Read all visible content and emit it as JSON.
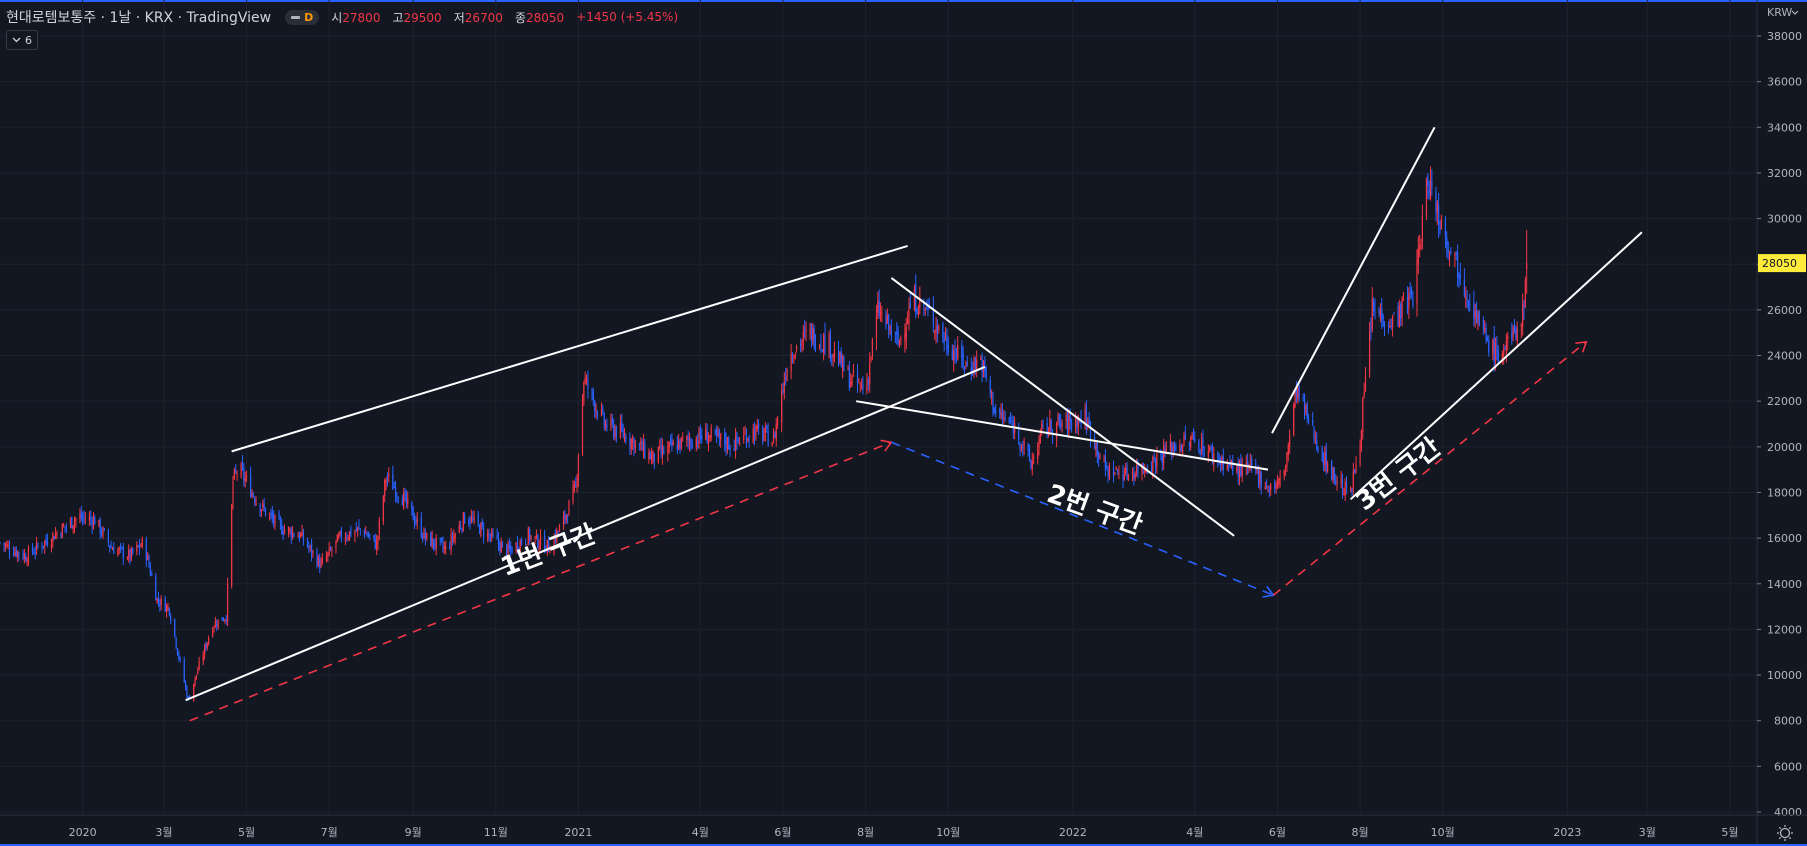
{
  "header": {
    "title": "현대로템보통주 · 1날 · KRX · TradingView",
    "interval_badge": "D",
    "ohlc": [
      {
        "key": "시",
        "value": "27800"
      },
      {
        "key": "고",
        "value": "29500"
      },
      {
        "key": "저",
        "value": "26700"
      },
      {
        "key": "종",
        "value": "28050"
      }
    ],
    "change": "+1450 (+5.45%)"
  },
  "indicators_toggle": {
    "count": "6"
  },
  "colors": {
    "background": "#131722",
    "grid": "#1e222d",
    "up": "#f23645",
    "down": "#2962ff",
    "price_badge": "#ffeb3b",
    "trend": "#ffffff",
    "accent": "#2962ff"
  },
  "chart_data": {
    "type": "candlestick",
    "currency": "KRW",
    "last_price": 28050,
    "ylim": [
      4000,
      38000
    ],
    "y_ticks": [
      "4000",
      "6000",
      "8000",
      "10000",
      "12000",
      "14000",
      "16000",
      "18000",
      "20000",
      "22000",
      "24000",
      "26000",
      "28000",
      "30000",
      "32000",
      "34000",
      "36000",
      "38000"
    ],
    "x_range": [
      "2019-11-01",
      "2023-05-21"
    ],
    "x_ticks": [
      {
        "date": "2020-01-01",
        "label": "2020"
      },
      {
        "date": "2020-03-01",
        "label": "3월"
      },
      {
        "date": "2020-05-01",
        "label": "5월"
      },
      {
        "date": "2020-07-01",
        "label": "7월"
      },
      {
        "date": "2020-09-01",
        "label": "9월"
      },
      {
        "date": "2020-11-01",
        "label": "11월"
      },
      {
        "date": "2021-01-01",
        "label": "2021"
      },
      {
        "date": "2021-04-01",
        "label": "4월"
      },
      {
        "date": "2021-06-01",
        "label": "6월"
      },
      {
        "date": "2021-08-01",
        "label": "8월"
      },
      {
        "date": "2021-10-01",
        "label": "10월"
      },
      {
        "date": "2022-01-01",
        "label": "2022"
      },
      {
        "date": "2022-04-01",
        "label": "4월"
      },
      {
        "date": "2022-06-01",
        "label": "6월"
      },
      {
        "date": "2022-08-01",
        "label": "8월"
      },
      {
        "date": "2022-10-01",
        "label": "10월"
      },
      {
        "date": "2023-01-01",
        "label": "2023"
      },
      {
        "date": "2023-03-01",
        "label": "3월"
      },
      {
        "date": "2023-05-01",
        "label": "5월"
      }
    ],
    "price_path": [
      [
        "2019-11-01",
        15800
      ],
      [
        "2019-11-20",
        15200
      ],
      [
        "2019-12-10",
        16100
      ],
      [
        "2019-12-28",
        16900
      ],
      [
        "2020-01-10",
        16800
      ],
      [
        "2020-01-22",
        15600
      ],
      [
        "2020-02-05",
        15200
      ],
      [
        "2020-02-15",
        15800
      ],
      [
        "2020-02-25",
        13300
      ],
      [
        "2020-03-05",
        12900
      ],
      [
        "2020-03-12",
        10800
      ],
      [
        "2020-03-19",
        8900
      ],
      [
        "2020-03-28",
        10600
      ],
      [
        "2020-04-06",
        12200
      ],
      [
        "2020-04-16",
        12600
      ],
      [
        "2020-04-21",
        18500
      ],
      [
        "2020-04-25",
        19100
      ],
      [
        "2020-05-10",
        17500
      ],
      [
        "2020-05-25",
        16500
      ],
      [
        "2020-06-10",
        16100
      ],
      [
        "2020-06-25",
        14800
      ],
      [
        "2020-07-10",
        16100
      ],
      [
        "2020-07-25",
        16400
      ],
      [
        "2020-08-05",
        15700
      ],
      [
        "2020-08-12",
        18700
      ],
      [
        "2020-08-25",
        17700
      ],
      [
        "2020-09-10",
        16000
      ],
      [
        "2020-09-25",
        15500
      ],
      [
        "2020-10-10",
        17000
      ],
      [
        "2020-10-25",
        16200
      ],
      [
        "2020-11-10",
        15400
      ],
      [
        "2020-11-25",
        16100
      ],
      [
        "2020-12-10",
        15600
      ],
      [
        "2020-12-20",
        16600
      ],
      [
        "2020-12-30",
        18200
      ],
      [
        "2021-01-05",
        23000
      ],
      [
        "2021-01-20",
        21000
      ],
      [
        "2021-02-05",
        20500
      ],
      [
        "2021-02-25",
        19500
      ],
      [
        "2021-03-15",
        20100
      ],
      [
        "2021-04-05",
        20500
      ],
      [
        "2021-04-25",
        20100
      ],
      [
        "2021-05-10",
        20700
      ],
      [
        "2021-05-25",
        20300
      ],
      [
        "2021-06-05",
        24000
      ],
      [
        "2021-06-20",
        25000
      ],
      [
        "2021-07-05",
        24500
      ],
      [
        "2021-07-20",
        23000
      ],
      [
        "2021-08-01",
        22500
      ],
      [
        "2021-08-10",
        26000
      ],
      [
        "2021-08-25",
        24500
      ],
      [
        "2021-09-05",
        26500
      ],
      [
        "2021-09-15",
        26000
      ],
      [
        "2021-10-01",
        24500
      ],
      [
        "2021-10-15",
        23500
      ],
      [
        "2021-10-25",
        23800
      ],
      [
        "2021-11-05",
        21500
      ],
      [
        "2021-11-20",
        20800
      ],
      [
        "2021-12-01",
        19200
      ],
      [
        "2021-12-10",
        20800
      ],
      [
        "2021-12-25",
        21000
      ],
      [
        "2022-01-10",
        21300
      ],
      [
        "2022-01-25",
        19000
      ],
      [
        "2022-02-10",
        18800
      ],
      [
        "2022-02-28",
        19300
      ],
      [
        "2022-03-15",
        20000
      ],
      [
        "2022-04-01",
        20300
      ],
      [
        "2022-04-15",
        19600
      ],
      [
        "2022-05-01",
        19000
      ],
      [
        "2022-05-15",
        19000
      ],
      [
        "2022-05-25",
        18200
      ],
      [
        "2022-06-05",
        18500
      ],
      [
        "2022-06-15",
        22500
      ],
      [
        "2022-06-25",
        21000
      ],
      [
        "2022-07-05",
        19500
      ],
      [
        "2022-07-15",
        18500
      ],
      [
        "2022-07-25",
        17900
      ],
      [
        "2022-08-01",
        20500
      ],
      [
        "2022-08-10",
        26000
      ],
      [
        "2022-08-25",
        25500
      ],
      [
        "2022-09-10",
        26800
      ],
      [
        "2022-09-20",
        31800
      ],
      [
        "2022-09-30",
        29800
      ],
      [
        "2022-10-15",
        27500
      ],
      [
        "2022-10-30",
        25000
      ],
      [
        "2022-11-10",
        24000
      ],
      [
        "2022-11-20",
        24600
      ],
      [
        "2022-11-29",
        25800
      ],
      [
        "2022-12-02",
        28050
      ]
    ],
    "trendlines": [
      {
        "from": [
          "2020-04-20",
          19800
        ],
        "to": [
          "2021-09-01",
          28800
        ]
      },
      {
        "from": [
          "2020-03-17",
          8900
        ],
        "to": [
          "2021-10-28",
          23500
        ]
      },
      {
        "from": [
          "2021-08-20",
          27400
        ],
        "to": [
          "2022-04-30",
          16100
        ]
      },
      {
        "from": [
          "2021-07-25",
          22000
        ],
        "to": [
          "2022-05-25",
          19000
        ]
      },
      {
        "from": [
          "2022-05-28",
          20600
        ],
        "to": [
          "2022-09-25",
          34000
        ]
      },
      {
        "from": [
          "2022-07-25",
          17700
        ],
        "to": [
          "2023-02-25",
          29400
        ]
      }
    ],
    "projections": [
      {
        "color": "red",
        "from": [
          "2020-03-20",
          8000
        ],
        "to": [
          "2021-08-20",
          20200
        ]
      },
      {
        "color": "blue",
        "from": [
          "2021-08-20",
          20200
        ],
        "to": [
          "2022-05-29",
          13500
        ]
      },
      {
        "color": "red",
        "from": [
          "2022-05-29",
          13500
        ],
        "to": [
          "2023-01-15",
          24600
        ]
      }
    ],
    "annotations": [
      {
        "text": "1번 구간",
        "at": [
          "2020-12-12",
          15100
        ],
        "angle": -21
      },
      {
        "text": "2번 구간",
        "at": [
          "2022-01-15",
          16900
        ],
        "angle": 20
      },
      {
        "text": "3번 구간",
        "at": [
          "2022-09-02",
          18500
        ],
        "angle": -38
      }
    ]
  }
}
